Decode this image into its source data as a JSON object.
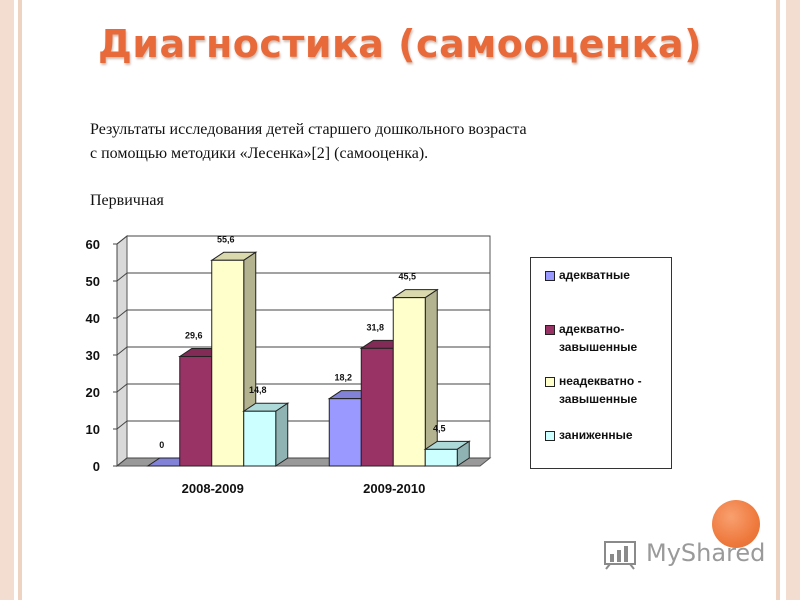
{
  "header": {
    "title": "Диагностика (самооценка)"
  },
  "description": {
    "line1": "Результаты исследования детей старшего дошкольного возраста",
    "line2": "с помощью методики «Лесенка»[2] (самооценка).",
    "subheading": "Первичная"
  },
  "chart_data": {
    "type": "bar",
    "categories": [
      "2008-2009",
      "2009-2010"
    ],
    "series": [
      {
        "name": "адекватные",
        "values": [
          0,
          18.2
        ],
        "labels": [
          "0",
          "18,2"
        ],
        "color": "#9999ff"
      },
      {
        "name": "адекватно- завышенные",
        "values": [
          29.6,
          31.8
        ],
        "labels": [
          "29,6",
          "31,8"
        ],
        "color": "#993366"
      },
      {
        "name": "неадекватно - завышенные",
        "values": [
          55.6,
          45.5
        ],
        "labels": [
          "55,6",
          "45,5"
        ],
        "color": "#ffffcc"
      },
      {
        "name": "заниженные",
        "values": [
          14.8,
          4.5
        ],
        "labels": [
          "14,8",
          "4,5"
        ],
        "color": "#ccffff"
      }
    ],
    "ylim": [
      0,
      60
    ],
    "yticks": [
      0,
      10,
      20,
      30,
      40,
      50,
      60
    ],
    "grid": true,
    "style": "3d-clustered-bar",
    "legend_position": "right"
  },
  "legend": {
    "items": [
      {
        "line1": "адекватные",
        "line2": ""
      },
      {
        "line1": "адекватно-",
        "line2": "завышенные"
      },
      {
        "line1": "неадекватно -",
        "line2": "завышенные"
      },
      {
        "line1": "заниженные",
        "line2": ""
      }
    ]
  },
  "watermark": {
    "text": "MyShared",
    "accent": "#ef7a3e"
  }
}
